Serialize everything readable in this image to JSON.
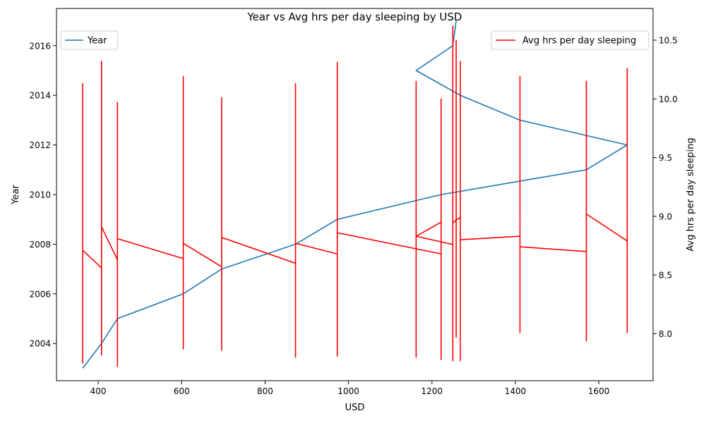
{
  "chart_data": {
    "type": "line",
    "title": "Year vs Avg hrs per day sleeping by USD",
    "xlabel": "USD",
    "xlim": [
      300,
      1730
    ],
    "x_ticks": [
      400,
      600,
      800,
      1000,
      1200,
      1400,
      1600
    ],
    "grid": false,
    "left_axis": {
      "label": "Year",
      "ylim": [
        2002.5,
        2017.5
      ],
      "ticks": [
        2004,
        2006,
        2008,
        2010,
        2012,
        2014,
        2016
      ],
      "legend_placement": "upper-left"
    },
    "right_axis": {
      "label": "Avg hrs per day sleeping",
      "ylim": [
        7.6,
        10.77
      ],
      "ticks": [
        8.0,
        8.5,
        9.0,
        9.5,
        10.0,
        10.5
      ],
      "legend_placement": "upper-right"
    },
    "series": [
      {
        "name": "Year",
        "axis": "left",
        "color": "#1f77b4",
        "points": [
          [
            363,
            2003
          ],
          [
            408,
            2004
          ],
          [
            446,
            2005
          ],
          [
            604,
            2006
          ],
          [
            696,
            2007
          ],
          [
            873,
            2008
          ],
          [
            973,
            2009
          ],
          [
            1222,
            2010
          ],
          [
            1570,
            2011
          ],
          [
            1668,
            2012
          ],
          [
            1411,
            2013
          ],
          [
            1268,
            2014
          ],
          [
            1162,
            2015
          ],
          [
            1250,
            2016
          ],
          [
            1258,
            2017
          ]
        ]
      },
      {
        "name": "Avg hrs per day sleeping",
        "axis": "right",
        "color": "#ff0000",
        "points": [
          [
            363,
            8.71
          ],
          [
            363,
            7.75
          ],
          [
            363,
            10.13
          ],
          [
            363,
            8.71
          ],
          [
            408,
            8.56
          ],
          [
            408,
            7.82
          ],
          [
            408,
            10.32
          ],
          [
            408,
            8.91
          ],
          [
            446,
            8.63
          ],
          [
            446,
            7.72
          ],
          [
            446,
            9.97
          ],
          [
            446,
            8.81
          ],
          [
            604,
            8.64
          ],
          [
            604,
            7.87
          ],
          [
            604,
            10.19
          ],
          [
            604,
            8.77
          ],
          [
            696,
            8.57
          ],
          [
            696,
            7.86
          ],
          [
            696,
            10.01
          ],
          [
            696,
            8.82
          ],
          [
            873,
            8.6
          ],
          [
            873,
            7.8
          ],
          [
            873,
            10.13
          ],
          [
            873,
            8.77
          ],
          [
            973,
            8.68
          ],
          [
            973,
            7.81
          ],
          [
            973,
            10.31
          ],
          [
            973,
            8.86
          ],
          [
            1222,
            8.68
          ],
          [
            1222,
            7.78
          ],
          [
            1222,
            10.0
          ],
          [
            1222,
            8.95
          ],
          [
            1162,
            8.83
          ],
          [
            1162,
            7.8
          ],
          [
            1162,
            10.15
          ],
          [
            1162,
            8.83
          ],
          [
            1250,
            8.76
          ],
          [
            1250,
            7.77
          ],
          [
            1250,
            10.62
          ],
          [
            1250,
            8.94
          ],
          [
            1258,
            8.97
          ],
          [
            1258,
            7.97
          ],
          [
            1258,
            10.5
          ],
          [
            1258,
            8.97
          ],
          [
            1268,
            8.99
          ],
          [
            1268,
            7.77
          ],
          [
            1268,
            10.32
          ],
          [
            1268,
            8.8
          ],
          [
            1411,
            8.83
          ],
          [
            1411,
            8.01
          ],
          [
            1411,
            10.19
          ],
          [
            1411,
            8.74
          ],
          [
            1570,
            8.7
          ],
          [
            1570,
            7.94
          ],
          [
            1570,
            10.15
          ],
          [
            1570,
            9.02
          ],
          [
            1668,
            8.79
          ],
          [
            1668,
            8.01
          ],
          [
            1668,
            10.26
          ],
          [
            1668,
            8.74
          ]
        ]
      }
    ]
  }
}
